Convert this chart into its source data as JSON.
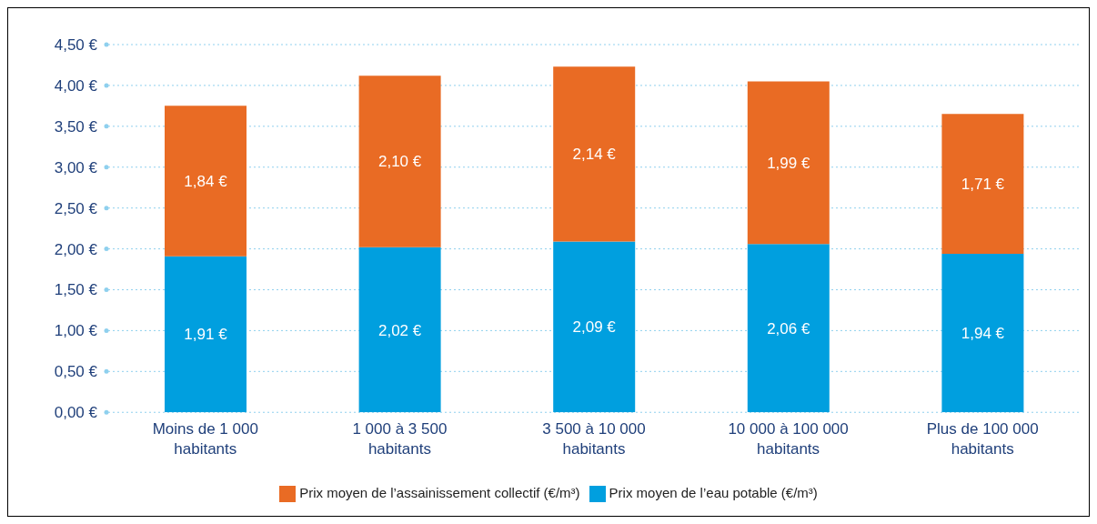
{
  "chart_data": {
    "type": "bar",
    "stacked": true,
    "categories": [
      "Moins de 1 000 habitants",
      "1 000 à 3 500 habitants",
      "3 500 à 10 000 habitants",
      "10 000 à 100 000 habitants",
      "Plus de 100 000 habitants"
    ],
    "series": [
      {
        "name": "Prix moyen de l’eau potable (€/m³)",
        "color": "#009fdf",
        "values": [
          1.91,
          2.02,
          2.09,
          2.06,
          1.94
        ],
        "value_labels": [
          "1,91 €",
          "2,02 €",
          "2,09 €",
          "2,06 €",
          "1,94 €"
        ]
      },
      {
        "name": "Prix moyen de l’assainissement collectif (€/m³)",
        "color": "#e96b24",
        "values": [
          1.84,
          2.1,
          2.14,
          1.99,
          1.71
        ],
        "value_labels": [
          "1,84 €",
          "2,10 €",
          "2,14 €",
          "1,99 €",
          "1,71 €"
        ]
      }
    ],
    "ylim": [
      0,
      4.5
    ],
    "yticks": [
      {
        "value": 0,
        "label": "0,00 €"
      },
      {
        "value": 0.5,
        "label": "0,50 €"
      },
      {
        "value": 1,
        "label": "1,00 €"
      },
      {
        "value": 1.5,
        "label": "1,50 €"
      },
      {
        "value": 2,
        "label": "2,00 €"
      },
      {
        "value": 2.5,
        "label": "2,50 €"
      },
      {
        "value": 3,
        "label": "3,00 €"
      },
      {
        "value": 3.5,
        "label": "3,50 €"
      },
      {
        "value": 4,
        "label": "4,00 €"
      },
      {
        "value": 4.5,
        "label": "4,50 €"
      }
    ],
    "grid": "y",
    "legend": "bottom"
  }
}
